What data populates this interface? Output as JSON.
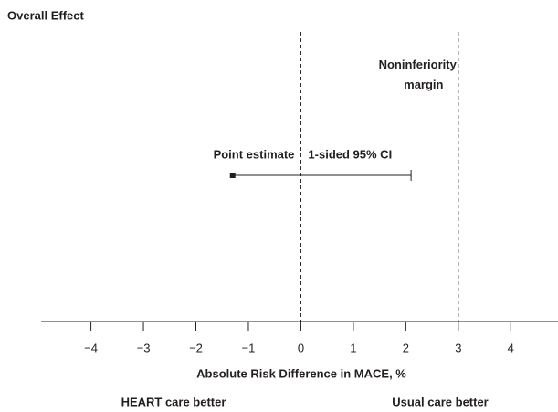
{
  "chart_data": {
    "type": "interval",
    "title": "Overall Effect",
    "x_label": "Absolute Risk Difference in MACE, %",
    "left_note": "HEART care better",
    "right_note": "Usual care better",
    "point_label": "Point estimate",
    "ci_label": "1-sided 95% CI",
    "margin_label": [
      "Noninferiority",
      "margin"
    ],
    "point_estimate": -1.3,
    "upper_ci": 2.1,
    "margin": 3,
    "xlim": [
      -4.95,
      4.9
    ],
    "xticks": [
      {
        "value": -4,
        "label": "−4"
      },
      {
        "value": -3,
        "label": "−3"
      },
      {
        "value": -2,
        "label": "−2"
      },
      {
        "value": -1,
        "label": "−1"
      },
      0,
      1,
      2,
      3,
      4
    ],
    "color": "#231f20"
  }
}
